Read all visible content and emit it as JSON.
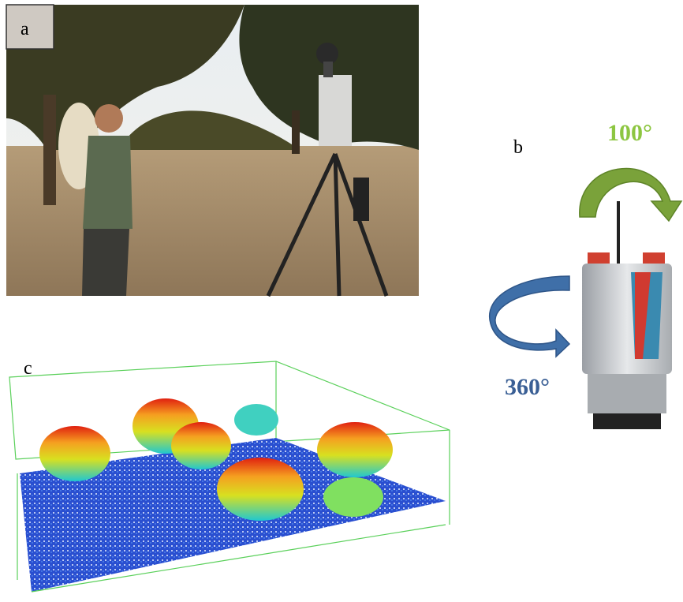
{
  "panel_a": {
    "label": "a"
  },
  "panel_b": {
    "label": "b",
    "vertical_rotation": "100°",
    "horizontal_rotation": "360°"
  },
  "panel_c": {
    "label": "c"
  }
}
